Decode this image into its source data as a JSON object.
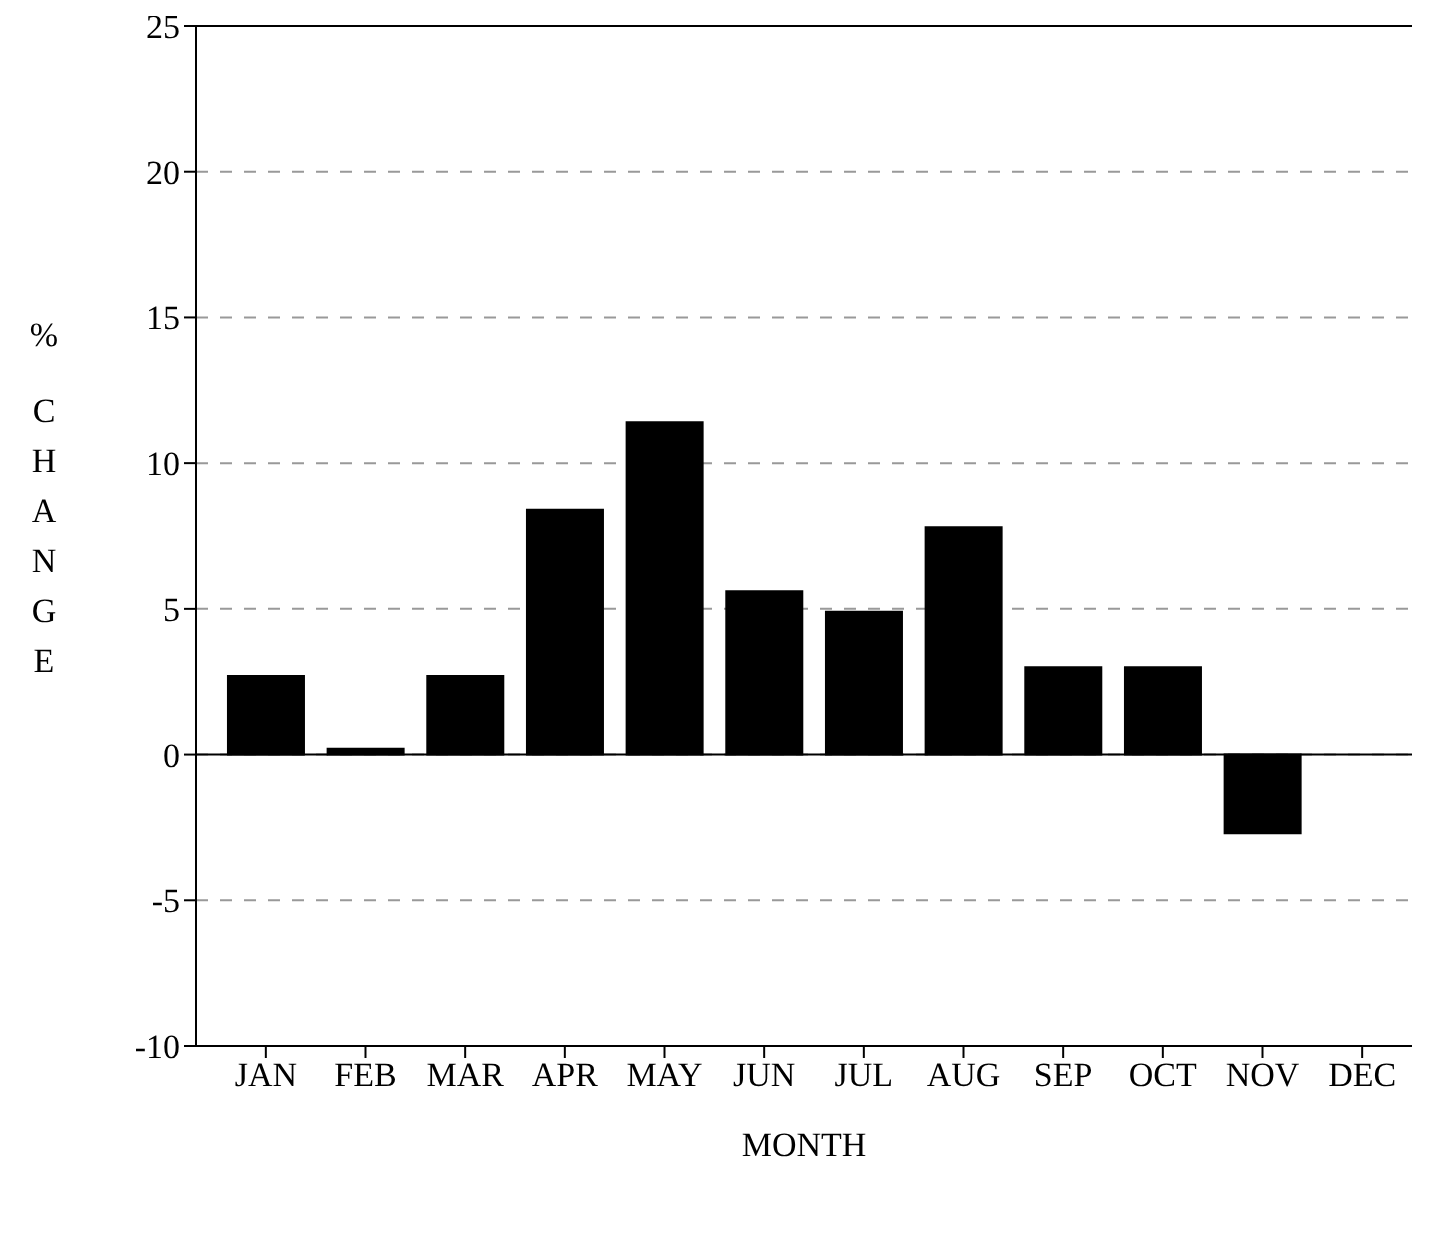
{
  "chart_data": {
    "type": "bar",
    "xlabel": "MONTH",
    "ylabel": "% CHANGE",
    "categories": [
      "JAN",
      "FEB",
      "MAR",
      "APR",
      "MAY",
      "JUN",
      "JUL",
      "AUG",
      "SEP",
      "OCT",
      "NOV",
      "DEC"
    ],
    "values": [
      2.7,
      0.2,
      2.7,
      8.4,
      11.4,
      5.6,
      4.9,
      7.8,
      3.0,
      3.0,
      -2.7,
      null
    ],
    "color": "#000000",
    "ylim": [
      -10,
      25
    ],
    "yticks": [
      -10,
      -5,
      0,
      5,
      10,
      15,
      20,
      25
    ],
    "grid": "y",
    "line_style": "dashed",
    "ref_lines": [
      {
        "axis": "y",
        "value": 0
      }
    ]
  }
}
